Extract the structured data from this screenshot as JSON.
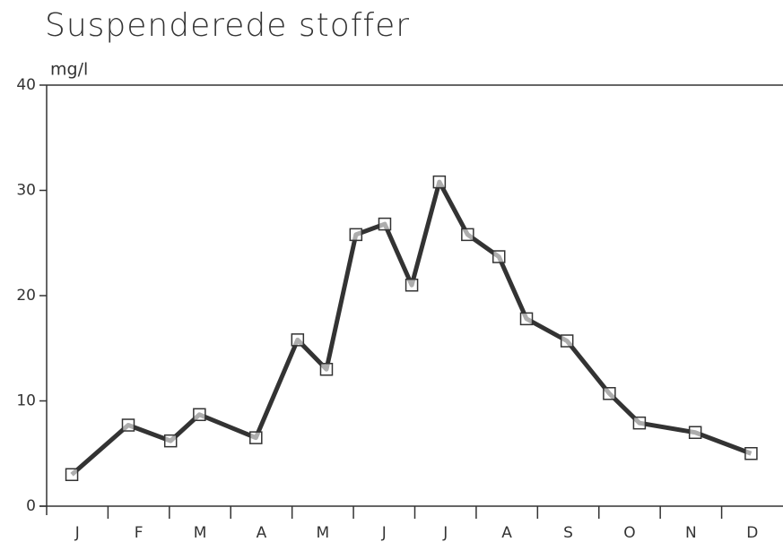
{
  "chart_data": {
    "type": "line",
    "title": "Suspenderede stoffer",
    "y_label": "mg/l",
    "categories": [
      "J",
      "F",
      "M",
      "A",
      "M",
      "J",
      "J",
      "A",
      "S",
      "O",
      "N",
      "D"
    ],
    "x": [
      0.41,
      1.33,
      2.02,
      2.49,
      3.41,
      4.09,
      4.56,
      5.04,
      5.51,
      5.95,
      6.4,
      6.86,
      7.37,
      7.82,
      8.48,
      9.17,
      9.66,
      10.57,
      11.48
    ],
    "values": [
      3,
      7.7,
      6.2,
      8.7,
      6.5,
      15.8,
      13,
      25.8,
      26.8,
      21,
      30.8,
      25.8,
      23.7,
      17.8,
      15.7,
      10.7,
      7.9,
      7,
      5
    ],
    "color": "#333333",
    "xlim": [
      0,
      12
    ],
    "ylim": [
      0,
      40
    ],
    "yticks": [
      0,
      10,
      20,
      30,
      40
    ],
    "grid": false
  }
}
